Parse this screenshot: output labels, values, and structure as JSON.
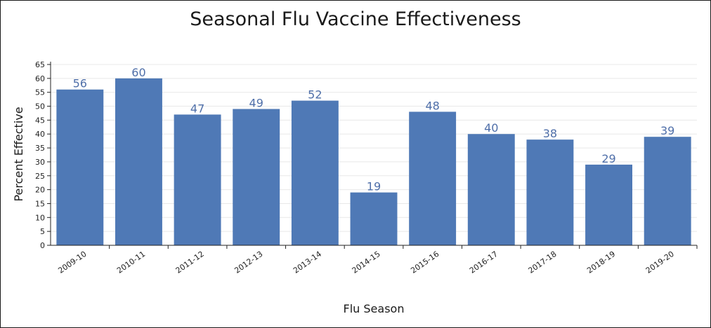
{
  "chart_data": {
    "type": "bar",
    "title": "Seasonal Flu Vaccine Effectiveness",
    "xlabel": "Flu Season",
    "ylabel": "Percent Effective",
    "categories": [
      "2009-10",
      "2010-11",
      "2011-12",
      "2012-13",
      "2013-14",
      "2014-15",
      "2015-16",
      "2016-17",
      "2017-18",
      "2018-19",
      "2019-20"
    ],
    "values": [
      56,
      60,
      47,
      49,
      52,
      19,
      48,
      40,
      38,
      29,
      39
    ],
    "ylim": [
      0,
      65
    ],
    "yticks": [
      "0",
      "5",
      "10",
      "15",
      "20",
      "25",
      "30",
      "35",
      "40",
      "45",
      "50",
      "55",
      "60",
      "65"
    ],
    "grid": true,
    "legend": "none",
    "colors": {
      "bar": "#4f79b6",
      "value_label": "#4f6fa9",
      "grid": "#e8e8e8"
    }
  }
}
